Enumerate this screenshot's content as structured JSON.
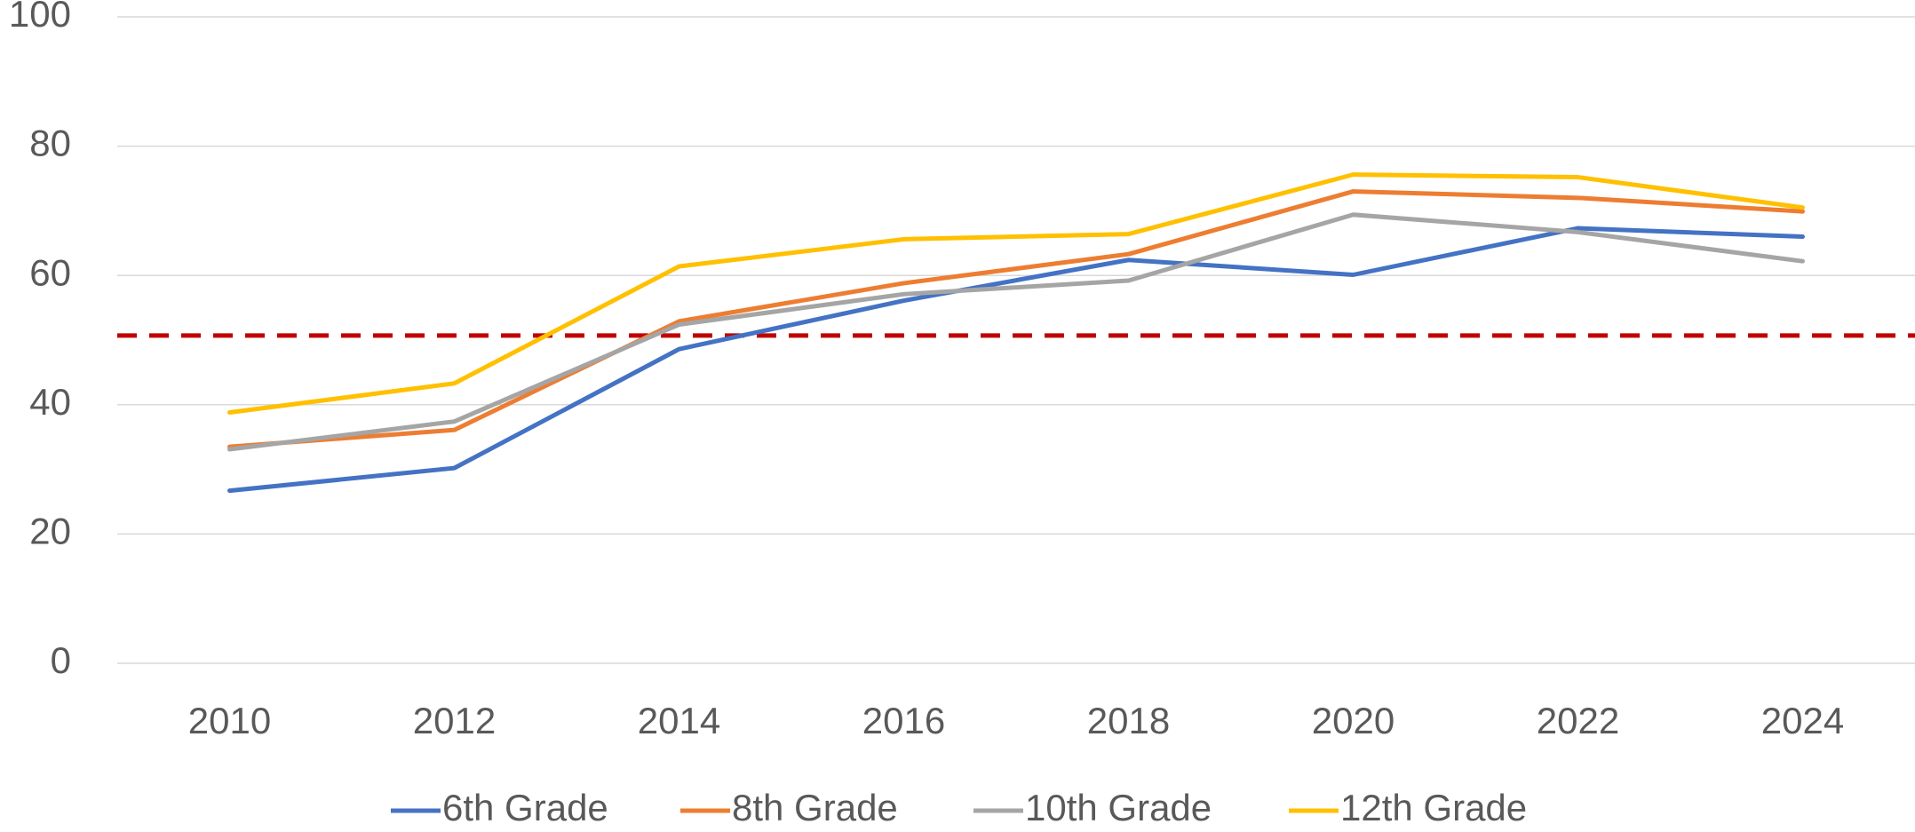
{
  "chart_data": {
    "type": "line",
    "categories": [
      "2010",
      "2012",
      "2014",
      "2016",
      "2018",
      "2020",
      "2022",
      "2024"
    ],
    "series": [
      {
        "name": "6th Grade",
        "color": "#4472c4",
        "values": [
          26.7,
          30.2,
          48.6,
          56.1,
          62.4,
          60.1,
          67.3,
          66.0
        ]
      },
      {
        "name": "8th Grade",
        "color": "#ed7d31",
        "values": [
          33.5,
          36.1,
          52.9,
          58.8,
          63.3,
          73.0,
          72.0,
          69.9
        ]
      },
      {
        "name": "10th Grade",
        "color": "#a5a5a5",
        "values": [
          33.1,
          37.4,
          52.4,
          57.1,
          59.2,
          69.4,
          66.7,
          62.2
        ]
      },
      {
        "name": "12th Grade",
        "color": "#ffc000",
        "values": [
          38.8,
          43.3,
          61.4,
          65.6,
          66.4,
          75.6,
          75.2,
          70.5
        ]
      }
    ],
    "reference_line": {
      "value": 50.7,
      "color": "#c00000",
      "style": "dashed"
    },
    "ylim": [
      0,
      100
    ],
    "yticks": [
      0,
      20,
      40,
      60,
      80,
      100
    ],
    "grid": true,
    "legend": "bottom"
  }
}
